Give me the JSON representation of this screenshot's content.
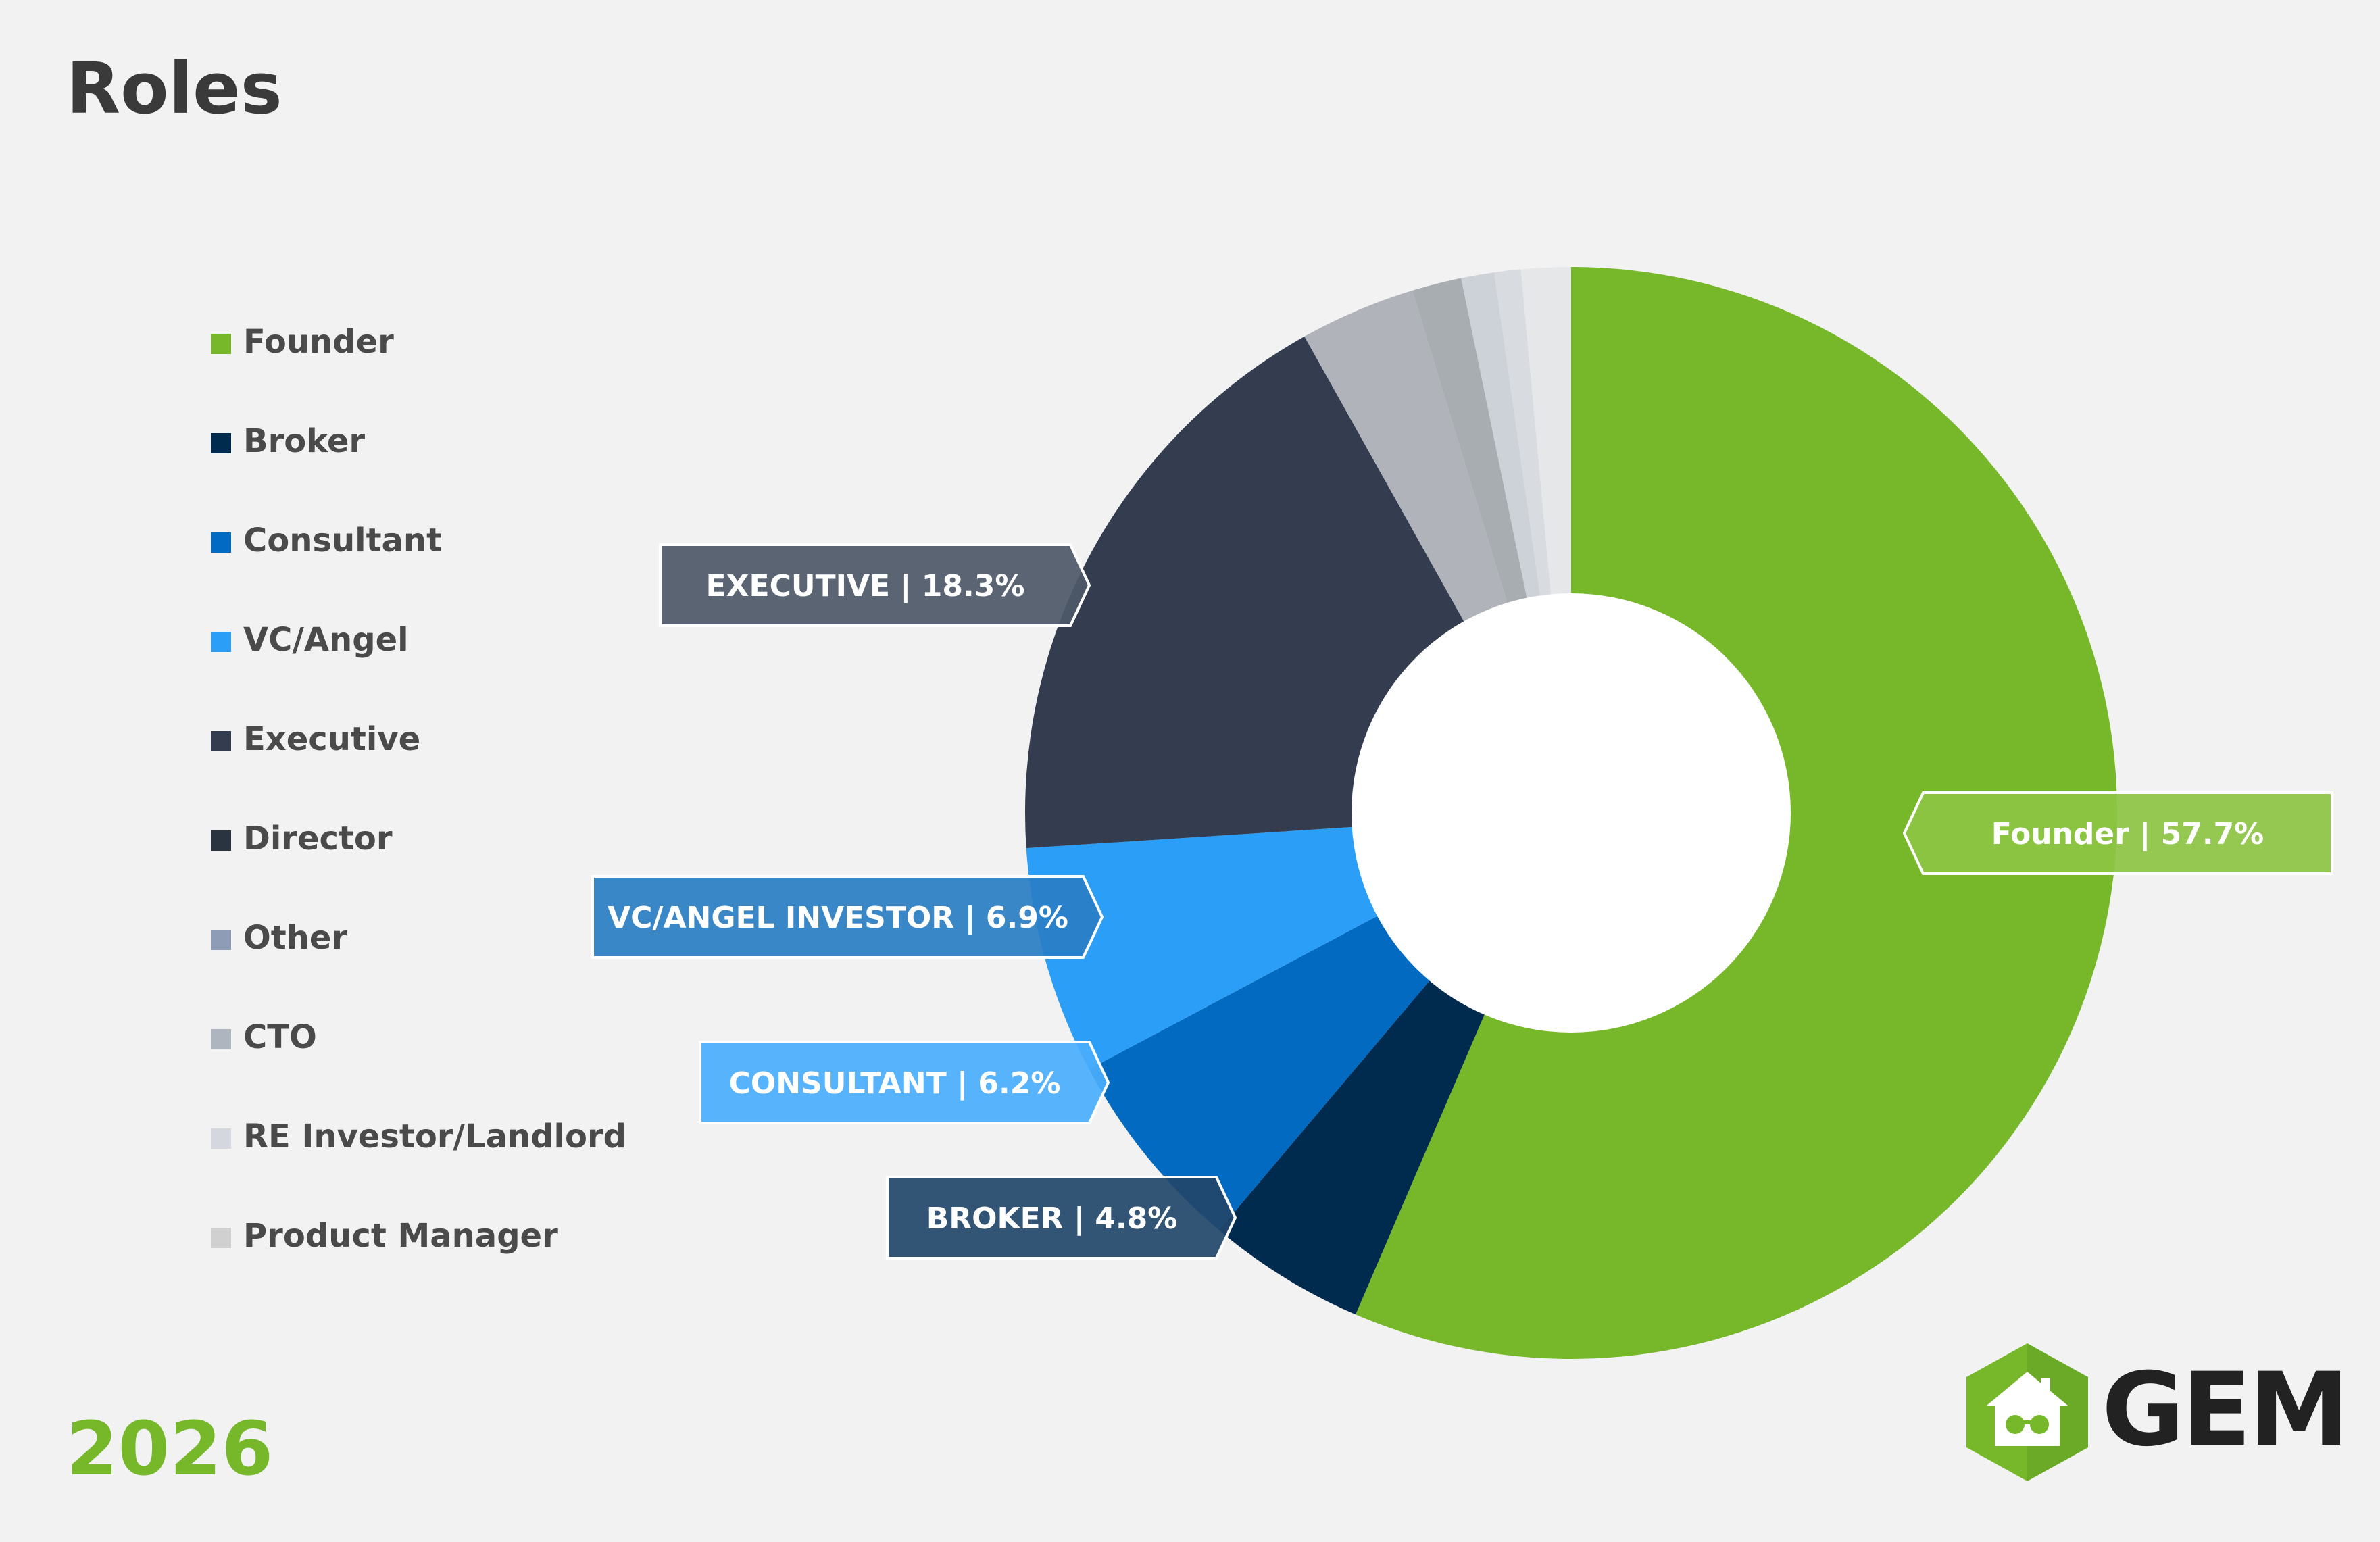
{
  "title": "Roles",
  "year": "2026",
  "logo": {
    "text": "GEM",
    "icon": "house-glasses-icon"
  },
  "legend": [
    {
      "label": "Founder",
      "color": "#76b82a"
    },
    {
      "label": "Broker",
      "color": "#002b4f"
    },
    {
      "label": "Consultant",
      "color": "#026ac0"
    },
    {
      "label": "VC/Angel",
      "color": "#2b9ef7"
    },
    {
      "label": "Executive",
      "color": "#333d4f"
    },
    {
      "label": "Director",
      "color": "#2a3340"
    },
    {
      "label": "Other",
      "color": "#8e9cb5"
    },
    {
      "label": "CTO",
      "color": "#aeb5be"
    },
    {
      "label": "RE Investor/Landlord",
      "color": "#d4d8de"
    },
    {
      "label": "Product Manager",
      "color": "#d0d0d0"
    }
  ],
  "chart_data": {
    "type": "pie",
    "title": "Roles",
    "donut": true,
    "slices": [
      {
        "name": "Founder",
        "value": 57.7,
        "color": "#76b82a"
      },
      {
        "name": "Broker",
        "value": 4.8,
        "color": "#002b4f"
      },
      {
        "name": "Consultant",
        "value": 6.2,
        "color": "#026ac0"
      },
      {
        "name": "VC/Angel",
        "value": 6.9,
        "color": "#2b9ef7"
      },
      {
        "name": "Executive",
        "value": 18.3,
        "color": "#333d4f"
      },
      {
        "name": "Other",
        "value": 3.5,
        "color": "#b0b4ba"
      },
      {
        "name": "CTO",
        "value": 1.5,
        "color": "#a8adb2"
      },
      {
        "name": "RE Investor/Landlord",
        "value": 1.0,
        "color": "#cdd2d8"
      },
      {
        "name": "",
        "value": 0.8,
        "color": "#d8dce1"
      },
      {
        "name": "Product Manager",
        "value": 1.5,
        "color": "#e6e7e9"
      }
    ],
    "callouts": [
      {
        "text": "Founder  |  57.7%",
        "color": "#8cc443",
        "slice": "Founder"
      },
      {
        "text": "EXECUTIVE | 18.3%",
        "color": "#4d5868",
        "slice": "Executive"
      },
      {
        "text": "VC/ANGEL INVESTOR | 6.9%",
        "color": "#2a7ec4",
        "slice": "VC/Angel"
      },
      {
        "text": "CONSULTANT | 6.2%",
        "color": "#4aaefc",
        "slice": "Consultant"
      },
      {
        "text": "BROKER | 4.8%",
        "color": "#22466a",
        "slice": "Broker"
      }
    ]
  }
}
